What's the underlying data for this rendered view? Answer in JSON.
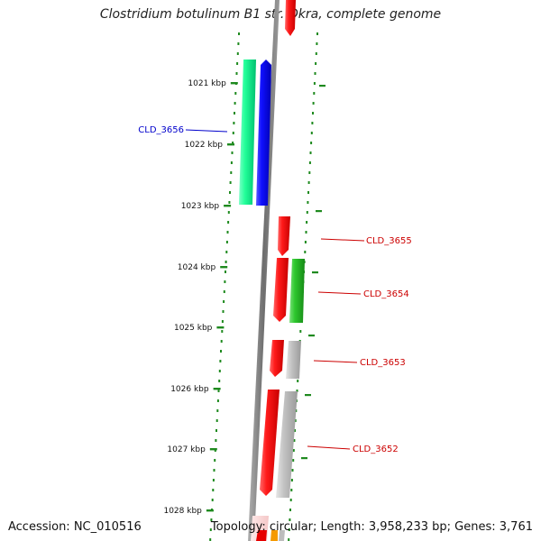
{
  "title": "Clostridium botulinum B1 str. Okra, complete genome",
  "accession": "Accession: NC_010516",
  "stats": "Topology: circular; Length: 3,958,233 bp; Genes: 3,761",
  "colors": {
    "backbone": "#7f7f7f",
    "tick": "#1f8a1f",
    "reverse_gene": "#e60000",
    "forward_gene_a": "#00ee88",
    "forward_gene_b": "#0000ee",
    "gene_b_pair": "#22bb22",
    "gray_gene": "#b8b8b8",
    "label_blue": "#0000cc",
    "label_red": "#cc0000"
  },
  "ticks": [
    {
      "label": "1021 kbp"
    },
    {
      "label": "1022 kbp"
    },
    {
      "label": "1023 kbp"
    },
    {
      "label": "1024 kbp"
    },
    {
      "label": "1025 kbp"
    },
    {
      "label": "1026 kbp"
    },
    {
      "label": "1027 kbp"
    },
    {
      "label": "1028 kbp"
    }
  ],
  "gene_labels": [
    {
      "name": "CLD_3656",
      "color": "#0000cc"
    },
    {
      "name": "CLD_3655",
      "color": "#cc0000"
    },
    {
      "name": "CLD_3654",
      "color": "#cc0000"
    },
    {
      "name": "CLD_3653",
      "color": "#cc0000"
    },
    {
      "name": "CLD_3652",
      "color": "#cc0000"
    }
  ]
}
